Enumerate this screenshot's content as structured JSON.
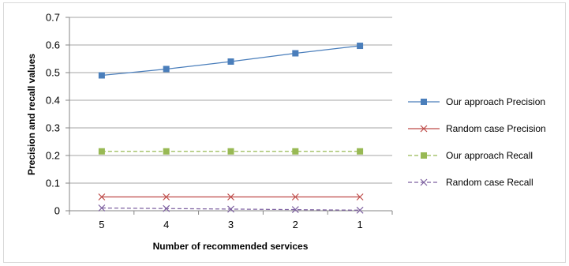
{
  "chart_data": {
    "type": "line",
    "title": "",
    "xlabel": "Number of recommended services",
    "ylabel": "Precision and recall values",
    "categories": [
      "5",
      "4",
      "3",
      "2",
      "1"
    ],
    "ylim": [
      0,
      0.7
    ],
    "yticks": [
      "0",
      "0.1",
      "0.2",
      "0.3",
      "0.4",
      "0.5",
      "0.6",
      "0.7"
    ],
    "grid": true,
    "legend_position": "right",
    "series": [
      {
        "name": "Our approach Precision",
        "values": [
          0.49,
          0.513,
          0.54,
          0.57,
          0.597
        ],
        "color": "#4a7ebb",
        "dash": "solid",
        "marker": "square"
      },
      {
        "name": "Random case Precision",
        "values": [
          0.05,
          0.05,
          0.05,
          0.05,
          0.05
        ],
        "color": "#be4b48",
        "dash": "solid",
        "marker": "x"
      },
      {
        "name": "Our approach Recall",
        "values": [
          0.215,
          0.215,
          0.215,
          0.215,
          0.215
        ],
        "color": "#98b954",
        "dash": "dashed",
        "marker": "square"
      },
      {
        "name": "Random case Recall",
        "values": [
          0.01,
          0.008,
          0.006,
          0.004,
          0.002
        ],
        "color": "#7d60a0",
        "dash": "dashed",
        "marker": "x"
      }
    ]
  }
}
